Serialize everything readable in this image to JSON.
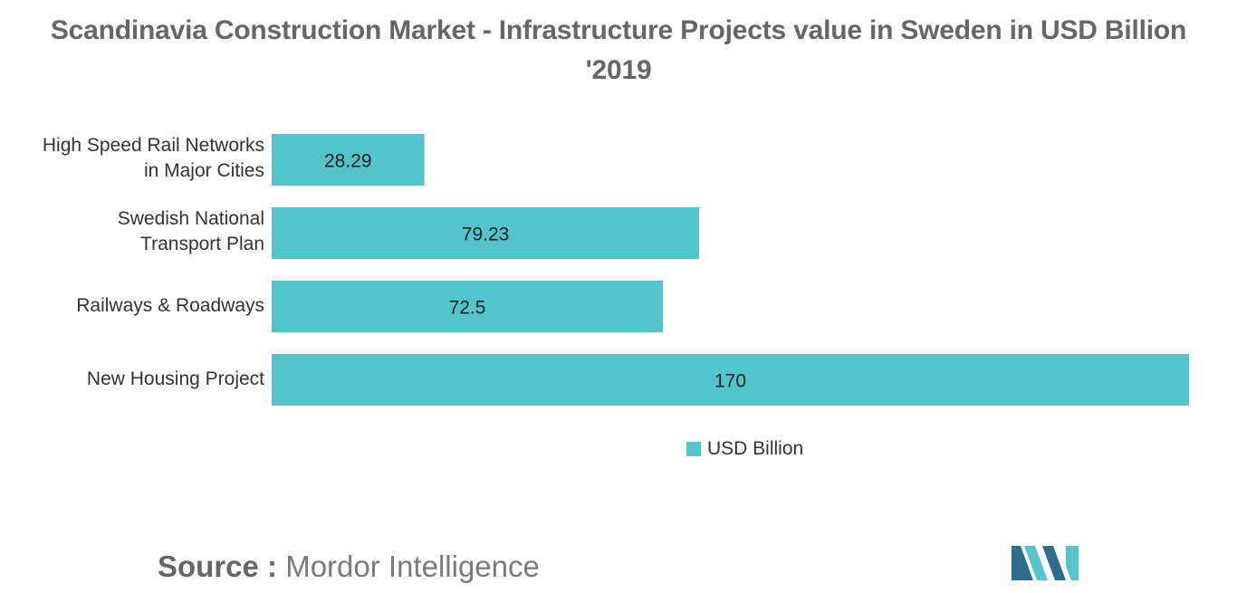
{
  "chart_data": {
    "type": "bar",
    "orientation": "horizontal",
    "title_line1": "Scandinavia Construction Market - Infrastructure Projects value in Sweden in USD Billion",
    "title_line2": "'2019",
    "categories": [
      [
        "High Speed Rail Networks",
        "in Major Cities"
      ],
      [
        "Swedish National",
        "Transport Plan"
      ],
      [
        "Railways & Roadways"
      ],
      [
        "New Housing Project"
      ]
    ],
    "series": [
      {
        "name": "USD Billion",
        "values": [
          28.29,
          79.23,
          72.5,
          170
        ],
        "labels": [
          "28.29",
          "79.23",
          "72.5",
          "170"
        ]
      }
    ],
    "xlim": [
      0,
      170
    ],
    "grid": false,
    "legend_position": "bottom-center",
    "colors": {
      "bar": "#53c4c9",
      "label_text": "#333333",
      "title_text": "#666666"
    }
  },
  "source": {
    "label": "Source :",
    "name": "Mordor Intelligence"
  },
  "logo": {
    "icon": "mordor-intelligence-logo",
    "colors": [
      "#2d6e8e",
      "#53c4c9"
    ]
  }
}
